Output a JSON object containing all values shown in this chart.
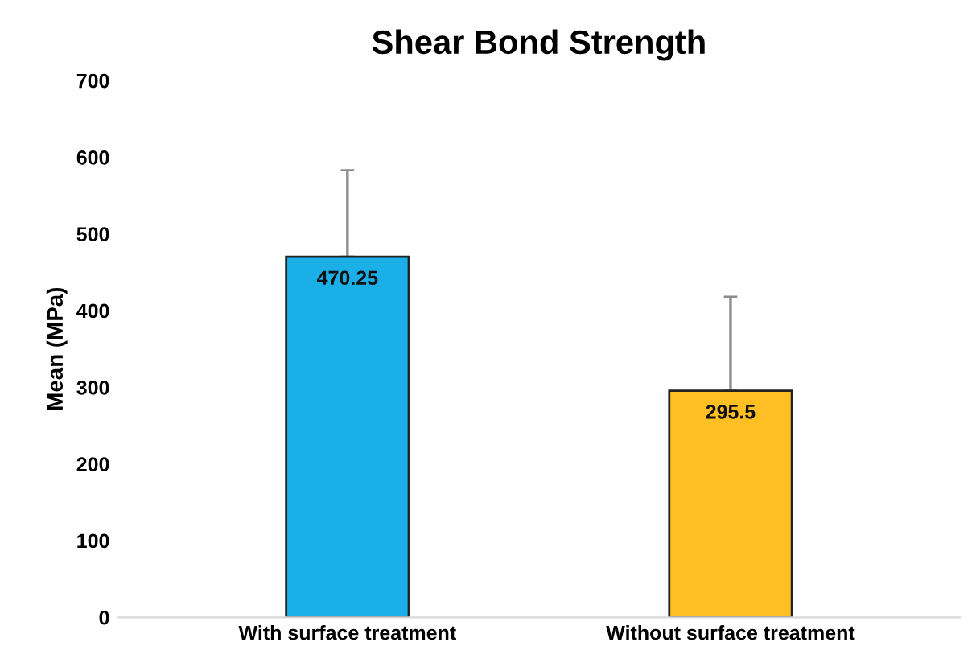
{
  "chart_data": {
    "type": "bar",
    "title": "Shear Bond Strength",
    "ylabel": "Mean (MPa)",
    "categories": [
      "With surface treatment",
      "Without surface treatment"
    ],
    "values": [
      470.25,
      295.5
    ],
    "colors": [
      "#1aafe6",
      "#fdbf24"
    ],
    "errors": [
      [
        470.25,
        583
      ],
      [
        295.5,
        418
      ]
    ],
    "data_labels": true,
    "ylim": [
      0,
      700
    ],
    "yticks": [
      0,
      100,
      200,
      300,
      400,
      500,
      600,
      700
    ],
    "grid": false,
    "legend": false
  }
}
